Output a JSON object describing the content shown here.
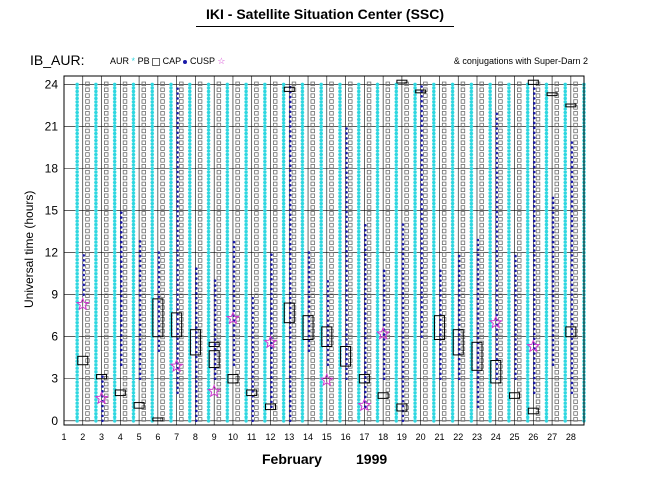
{
  "page": {
    "title": "IKI - Satellite Situation Center (SSC)",
    "panel_label": "IB_AUR:",
    "legend": {
      "aur": "AUR",
      "aur_symbol": "*",
      "pb": "PB",
      "cap": "CAP",
      "cusp": "CUSP"
    },
    "conj_note": "& conjugations with Super-Darn 2",
    "colors": {
      "aur": "#2fd7e0",
      "pb": "#6e6e6e",
      "cap": "#1a1aa8",
      "cusp": "#d13ad1",
      "frame": "#000000"
    }
  },
  "chart_data": {
    "type": "scatter",
    "title": "",
    "xlabel_month": "February",
    "xlabel_year": "1999",
    "ylabel": "Universal time (hours)",
    "xlim": [
      1,
      28.7
    ],
    "ylim": [
      -0.3,
      24.6
    ],
    "yticks": [
      0,
      3,
      6,
      9,
      12,
      15,
      18,
      21,
      24
    ],
    "xticks": [
      1,
      2,
      3,
      4,
      5,
      6,
      7,
      8,
      9,
      10,
      11,
      12,
      13,
      14,
      15,
      16,
      17,
      18,
      19,
      20,
      21,
      22,
      23,
      24,
      25,
      26,
      27,
      28
    ],
    "grid": true,
    "series": [
      {
        "name": "AUR",
        "columns": [
          1.7,
          2.7,
          3.7,
          4.7,
          5.7,
          6.7,
          7.7,
          8.7,
          9.7,
          10.7,
          11.7,
          12.7,
          13.7,
          14.7,
          15.7,
          16.7,
          17.7,
          18.7,
          19.7,
          20.7,
          21.7,
          22.7,
          23.7,
          24.7,
          25.7,
          26.7,
          27.7,
          28.7
        ]
      },
      {
        "name": "PB",
        "columns": [
          2.25,
          3.25,
          4.25,
          5.25,
          6.25,
          7.25,
          8.25,
          9.25,
          10.25,
          11.25,
          12.25,
          13.25,
          14.25,
          15.25,
          16.25,
          17.25,
          18.25,
          19.25,
          20.25,
          21.25,
          22.25,
          23.25,
          24.25,
          25.25,
          26.25,
          27.25,
          28.25
        ]
      },
      {
        "name": "CAP",
        "dots": [
          {
            "x": 2.05,
            "y0": 9,
            "y1": 12
          },
          {
            "x": 3.05,
            "y0": 0,
            "y1": 3.5
          },
          {
            "x": 4.05,
            "y0": 4,
            "y1": 15
          },
          {
            "x": 5.05,
            "y0": 3,
            "y1": 13
          },
          {
            "x": 6.05,
            "y0": 5,
            "y1": 12
          },
          {
            "x": 7.05,
            "y0": 2,
            "y1": 24
          },
          {
            "x": 8.05,
            "y0": 0,
            "y1": 11
          },
          {
            "x": 9.05,
            "y0": 3,
            "y1": 10
          },
          {
            "x": 10.05,
            "y0": 4,
            "y1": 13
          },
          {
            "x": 11.05,
            "y0": 0,
            "y1": 9
          },
          {
            "x": 12.05,
            "y0": 1,
            "y1": 12
          },
          {
            "x": 13.05,
            "y0": 0,
            "y1": 24
          },
          {
            "x": 14.05,
            "y0": 5,
            "y1": 12
          },
          {
            "x": 15.05,
            "y0": 4,
            "y1": 10
          },
          {
            "x": 16.05,
            "y0": 3,
            "y1": 21
          },
          {
            "x": 17.05,
            "y0": 1,
            "y1": 14
          },
          {
            "x": 18.05,
            "y0": 3,
            "y1": 11
          },
          {
            "x": 19.05,
            "y0": 0,
            "y1": 14
          },
          {
            "x": 20.05,
            "y0": 6,
            "y1": 24
          },
          {
            "x": 21.05,
            "y0": 3,
            "y1": 11
          },
          {
            "x": 22.05,
            "y0": 3,
            "y1": 12
          },
          {
            "x": 23.05,
            "y0": 1,
            "y1": 13
          },
          {
            "x": 24.05,
            "y0": 3,
            "y1": 22
          },
          {
            "x": 25.05,
            "y0": 3,
            "y1": 12
          },
          {
            "x": 26.05,
            "y0": 2,
            "y1": 24
          },
          {
            "x": 27.05,
            "y0": 4,
            "y1": 16
          },
          {
            "x": 28.05,
            "y0": 2,
            "y1": 20
          }
        ]
      },
      {
        "name": "CUSP",
        "points": [
          {
            "x": 2,
            "y": 8.3
          },
          {
            "x": 3,
            "y": 1.6
          },
          {
            "x": 7,
            "y": 3.9
          },
          {
            "x": 9,
            "y": 2.1
          },
          {
            "x": 10,
            "y": 7.3
          },
          {
            "x": 12,
            "y": 5.6
          },
          {
            "x": 15,
            "y": 2.9
          },
          {
            "x": 17,
            "y": 1.1
          },
          {
            "x": 18,
            "y": 6.2
          },
          {
            "x": 24,
            "y": 7
          },
          {
            "x": 26,
            "y": 5.3
          }
        ]
      },
      {
        "name": "conjugations",
        "boxes": [
          {
            "x": 2,
            "y0": 4.0,
            "y1": 4.6
          },
          {
            "x": 3,
            "y0": 3.0,
            "y1": 3.3
          },
          {
            "x": 4,
            "y0": 1.8,
            "y1": 2.2
          },
          {
            "x": 5,
            "y0": 0.9,
            "y1": 1.3
          },
          {
            "x": 6,
            "y0": 0.0,
            "y1": 0.2
          },
          {
            "x": 6,
            "y0": 6.0,
            "y1": 8.7
          },
          {
            "x": 7,
            "y0": 6.0,
            "y1": 7.7
          },
          {
            "x": 8,
            "y0": 4.7,
            "y1": 6.5
          },
          {
            "x": 9,
            "y0": 3.8,
            "y1": 5.0
          },
          {
            "x": 9,
            "y0": 5.3,
            "y1": 5.6
          },
          {
            "x": 10,
            "y0": 2.7,
            "y1": 3.3
          },
          {
            "x": 11,
            "y0": 1.8,
            "y1": 2.2
          },
          {
            "x": 12,
            "y0": 0.8,
            "y1": 1.2
          },
          {
            "x": 13,
            "y0": 23.5,
            "y1": 23.8
          },
          {
            "x": 13,
            "y0": 7.0,
            "y1": 8.4
          },
          {
            "x": 14,
            "y0": 5.8,
            "y1": 7.5
          },
          {
            "x": 15,
            "y0": 5.3,
            "y1": 6.7
          },
          {
            "x": 16,
            "y0": 3.9,
            "y1": 5.3
          },
          {
            "x": 17,
            "y0": 2.7,
            "y1": 3.3
          },
          {
            "x": 18,
            "y0": 1.6,
            "y1": 2.0
          },
          {
            "x": 19,
            "y0": 0.7,
            "y1": 1.2
          },
          {
            "x": 19,
            "y0": 24.1,
            "y1": 24.3
          },
          {
            "x": 20,
            "y0": 23.4,
            "y1": 23.6
          },
          {
            "x": 21,
            "y0": 5.8,
            "y1": 7.5
          },
          {
            "x": 22,
            "y0": 4.7,
            "y1": 6.5
          },
          {
            "x": 23,
            "y0": 3.6,
            "y1": 5.6
          },
          {
            "x": 24,
            "y0": 2.7,
            "y1": 4.3
          },
          {
            "x": 25,
            "y0": 1.6,
            "y1": 2.0
          },
          {
            "x": 26,
            "y0": 0.5,
            "y1": 0.9
          },
          {
            "x": 26,
            "y0": 24.0,
            "y1": 24.3
          },
          {
            "x": 27,
            "y0": 23.2,
            "y1": 23.4
          },
          {
            "x": 28,
            "y0": 22.4,
            "y1": 22.6
          },
          {
            "x": 28,
            "y0": 6.0,
            "y1": 6.7
          }
        ]
      }
    ]
  }
}
